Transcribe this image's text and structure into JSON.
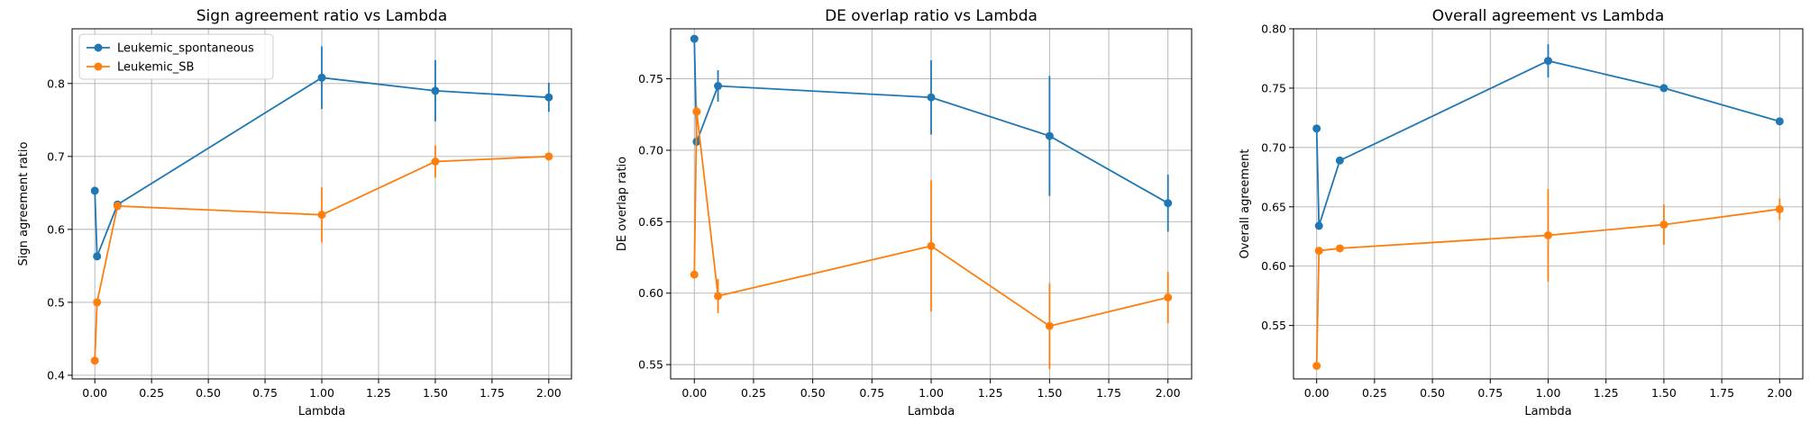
{
  "chart_data": [
    {
      "type": "line",
      "title": "Sign agreement ratio vs Lambda",
      "xlabel": "Lambda",
      "ylabel": "Sign agreement ratio",
      "xlim": [
        -0.1,
        2.1
      ],
      "ylim": [
        0.395,
        0.875
      ],
      "xticks": [
        "0.00",
        "0.25",
        "0.50",
        "0.75",
        "1.00",
        "1.25",
        "1.50",
        "1.75",
        "2.00"
      ],
      "yticks": [
        "0.4",
        "0.5",
        "0.6",
        "0.7",
        "0.8"
      ],
      "grid": true,
      "legend": "top-left",
      "series": [
        {
          "name": "Leukemic_spontaneous",
          "color": "#1f77b4",
          "x": [
            0.0,
            0.01,
            0.1,
            1.0,
            1.5,
            2.0
          ],
          "y": [
            0.653,
            0.563,
            0.634,
            0.808,
            0.79,
            0.781
          ],
          "err": [
            0.003,
            0.003,
            0.005,
            0.043,
            0.042,
            0.02
          ]
        },
        {
          "name": "Leukemic_SB",
          "color": "#ff7f0e",
          "x": [
            0.0,
            0.01,
            0.1,
            1.0,
            1.5,
            2.0
          ],
          "y": [
            0.42,
            0.5,
            0.632,
            0.62,
            0.693,
            0.7
          ],
          "err": [
            0.005,
            0.005,
            0.006,
            0.038,
            0.022,
            0.004
          ]
        }
      ]
    },
    {
      "type": "line",
      "title": "DE overlap ratio vs Lambda",
      "xlabel": "Lambda",
      "ylabel": "DE overlap ratio",
      "xlim": [
        -0.1,
        2.1
      ],
      "ylim": [
        0.54,
        0.785
      ],
      "xticks": [
        "0.00",
        "0.25",
        "0.50",
        "0.75",
        "1.00",
        "1.25",
        "1.50",
        "1.75",
        "2.00"
      ],
      "yticks": [
        "0.55",
        "0.60",
        "0.65",
        "0.70",
        "0.75"
      ],
      "grid": true,
      "series": [
        {
          "name": "Leukemic_spontaneous",
          "color": "#1f77b4",
          "x": [
            0.0,
            0.01,
            0.1,
            1.0,
            1.5,
            2.0
          ],
          "y": [
            0.778,
            0.706,
            0.745,
            0.737,
            0.71,
            0.663
          ],
          "err": [
            0.002,
            0.003,
            0.011,
            0.026,
            0.042,
            0.02
          ]
        },
        {
          "name": "Leukemic_SB",
          "color": "#ff7f0e",
          "x": [
            0.0,
            0.01,
            0.1,
            1.0,
            1.5,
            2.0
          ],
          "y": [
            0.613,
            0.727,
            0.598,
            0.633,
            0.577,
            0.597
          ],
          "err": [
            0.002,
            0.004,
            0.012,
            0.046,
            0.03,
            0.018
          ]
        }
      ]
    },
    {
      "type": "line",
      "title": "Overall agreement vs Lambda",
      "xlabel": "Lambda",
      "ylabel": "Overall agreement",
      "xlim": [
        -0.1,
        2.1
      ],
      "ylim": [
        0.505,
        0.8
      ],
      "xticks": [
        "0.00",
        "0.25",
        "0.50",
        "0.75",
        "1.00",
        "1.25",
        "1.50",
        "1.75",
        "2.00"
      ],
      "yticks": [
        "0.55",
        "0.60",
        "0.65",
        "0.70",
        "0.75",
        "0.80"
      ],
      "grid": true,
      "series": [
        {
          "name": "Leukemic_spontaneous",
          "color": "#1f77b4",
          "x": [
            0.0,
            0.01,
            0.1,
            1.0,
            1.5,
            2.0
          ],
          "y": [
            0.716,
            0.634,
            0.689,
            0.773,
            0.75,
            0.722
          ],
          "err": [
            0.002,
            0.003,
            0.003,
            0.014,
            0.003,
            0.003
          ]
        },
        {
          "name": "Leukemic_SB",
          "color": "#ff7f0e",
          "x": [
            0.0,
            0.01,
            0.1,
            1.0,
            1.5,
            2.0
          ],
          "y": [
            0.516,
            0.613,
            0.615,
            0.626,
            0.635,
            0.648
          ],
          "err": [
            0.002,
            0.003,
            0.003,
            0.039,
            0.017,
            0.009
          ]
        }
      ]
    }
  ]
}
